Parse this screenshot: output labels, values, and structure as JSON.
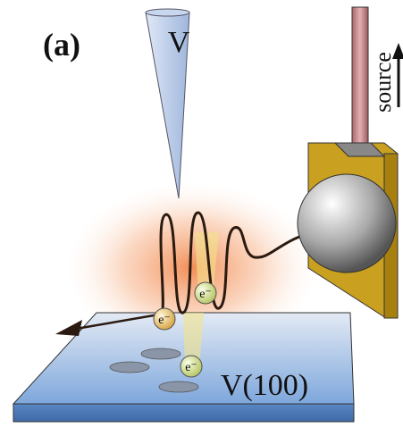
{
  "panel_label": "(a)",
  "tip_label": "V",
  "source_label": "source",
  "surface_label": "V(100)",
  "electrons": [
    {
      "label": "e⁻"
    },
    {
      "label": "e⁻"
    },
    {
      "label": "e⁻"
    }
  ]
}
